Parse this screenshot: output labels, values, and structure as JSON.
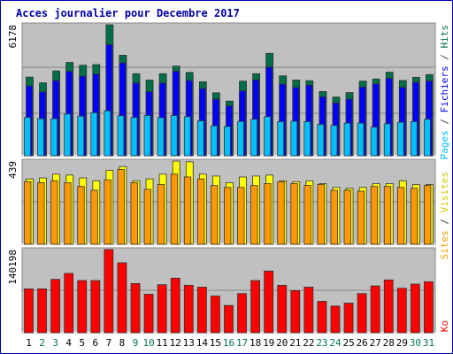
{
  "chart_data": [
    {
      "type": "bar",
      "panel": "pages-fichiers-hits",
      "title": "Acces journalier pour Decembre 2017",
      "ylabel_max": "6178",
      "categories": [
        "1",
        "2",
        "3",
        "4",
        "5",
        "6",
        "7",
        "8",
        "9",
        "10",
        "11",
        "12",
        "13",
        "14",
        "15",
        "16",
        "17",
        "18",
        "19",
        "20",
        "21",
        "22",
        "23",
        "24",
        "25",
        "26",
        "27",
        "28",
        "29",
        "30",
        "31"
      ],
      "series": [
        {
          "name": "Hits",
          "color": "#006e46",
          "values": [
            3710,
            3440,
            4000,
            4400,
            4270,
            4300,
            6178,
            4740,
            3870,
            3570,
            3870,
            4230,
            3930,
            3490,
            2970,
            2580,
            3520,
            3870,
            4830,
            3770,
            3570,
            3540,
            3030,
            2770,
            2980,
            3520,
            3620,
            3940,
            3550,
            3700,
            3830
          ]
        },
        {
          "name": "Fichiers",
          "color": "#0000ff",
          "values": [
            3290,
            3010,
            3550,
            3980,
            3750,
            3860,
            5240,
            4380,
            3430,
            3020,
            3430,
            3990,
            3550,
            3170,
            2670,
            2350,
            3060,
            3580,
            4180,
            3370,
            3220,
            3330,
            2780,
            2490,
            2670,
            3240,
            3390,
            3650,
            3230,
            3460,
            3530
          ]
        },
        {
          "name": "Pages",
          "color": "#00bfff",
          "values": [
            1810,
            1750,
            1750,
            1970,
            1870,
            2030,
            2120,
            1890,
            1810,
            1900,
            1800,
            1900,
            1850,
            1650,
            1410,
            1380,
            1620,
            1720,
            1850,
            1610,
            1630,
            1610,
            1480,
            1430,
            1540,
            1540,
            1350,
            1510,
            1580,
            1610,
            1720
          ]
        }
      ]
    },
    {
      "type": "bar",
      "panel": "sites-visites",
      "ylabel_max": "439",
      "categories": [
        "1",
        "2",
        "3",
        "4",
        "5",
        "6",
        "7",
        "8",
        "9",
        "10",
        "11",
        "12",
        "13",
        "14",
        "15",
        "16",
        "17",
        "18",
        "19",
        "20",
        "21",
        "22",
        "23",
        "24",
        "25",
        "26",
        "27",
        "28",
        "29",
        "30",
        "31"
      ],
      "series": [
        {
          "name": "Visites",
          "color": "#ffff00",
          "values": [
            345,
            350,
            370,
            365,
            350,
            335,
            390,
            410,
            335,
            345,
            370,
            439,
            435,
            370,
            360,
            325,
            355,
            360,
            365,
            335,
            330,
            335,
            320,
            300,
            295,
            300,
            320,
            320,
            335,
            315,
            315
          ]
        },
        {
          "name": "Sites",
          "color": "#ff9900",
          "values": [
            330,
            325,
            335,
            325,
            305,
            285,
            340,
            395,
            325,
            290,
            315,
            370,
            355,
            345,
            310,
            300,
            300,
            310,
            320,
            330,
            320,
            310,
            315,
            285,
            285,
            280,
            305,
            305,
            300,
            295,
            310
          ]
        }
      ]
    },
    {
      "type": "bar",
      "panel": "ko",
      "ylabel_max": "140198",
      "categories": [
        "1",
        "2",
        "3",
        "4",
        "5",
        "6",
        "7",
        "8",
        "9",
        "10",
        "11",
        "12",
        "13",
        "14",
        "15",
        "16",
        "17",
        "18",
        "19",
        "20",
        "21",
        "22",
        "23",
        "24",
        "25",
        "26",
        "27",
        "28",
        "29",
        "30",
        "31"
      ],
      "series": [
        {
          "name": "Ko",
          "color": "#ff0000",
          "values": [
            74000,
            74000,
            90000,
            100000,
            88000,
            88000,
            140198,
            118000,
            83000,
            65000,
            81000,
            92000,
            80000,
            77000,
            62000,
            46000,
            66000,
            88000,
            104000,
            80000,
            71000,
            77000,
            53000,
            45000,
            50000,
            66000,
            79000,
            89000,
            75000,
            82000,
            86000
          ]
        }
      ]
    }
  ],
  "legend_side": {
    "top": [
      {
        "text": "Pages",
        "color": "#00bfff"
      },
      {
        "text": " / ",
        "color": "#444444"
      },
      {
        "text": "Fichiers",
        "color": "#0000ff"
      },
      {
        "text": " / ",
        "color": "#444444"
      },
      {
        "text": "Hits",
        "color": "#006e46"
      }
    ],
    "mid": [
      {
        "text": "Sites",
        "color": "#ff9900"
      },
      {
        "text": " / ",
        "color": "#444444"
      },
      {
        "text": "Visites",
        "color": "#cccc00"
      }
    ],
    "bottom": [
      {
        "text": "Ko",
        "color": "#ff0000"
      }
    ]
  },
  "x_label_colors": {
    "weekday": "#000000",
    "weekend": "#007744"
  },
  "weekend_days": [
    "2",
    "3",
    "9",
    "10",
    "16",
    "17",
    "23",
    "24",
    "30",
    "31"
  ],
  "colors": {
    "panel_bg": "#c0c0c0",
    "frame_border": "#0000aa",
    "title": "#0000aa"
  }
}
